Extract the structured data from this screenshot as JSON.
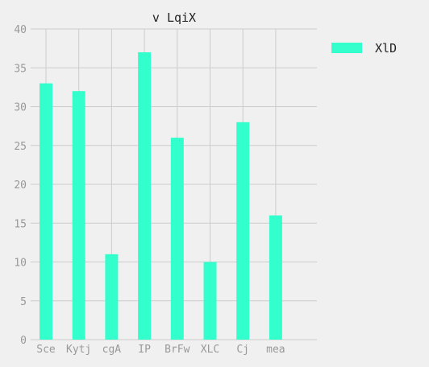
{
  "chart_data": {
    "type": "bar",
    "title": "v LqiX",
    "categories": [
      "Sce",
      "Kytj",
      "cgA",
      "IP",
      "BrFw",
      "XLC",
      "Cj",
      "mea"
    ],
    "series": [
      {
        "name": "XlD",
        "values": [
          33,
          32,
          11,
          37,
          26,
          10,
          28,
          16
        ],
        "color": "#33ffcc"
      }
    ],
    "ylim": [
      0,
      40
    ],
    "yticks": [
      0,
      5,
      10,
      15,
      20,
      25,
      30,
      35,
      40
    ],
    "grid": true,
    "legend": "top-right",
    "xlabel": "",
    "ylabel": ""
  }
}
